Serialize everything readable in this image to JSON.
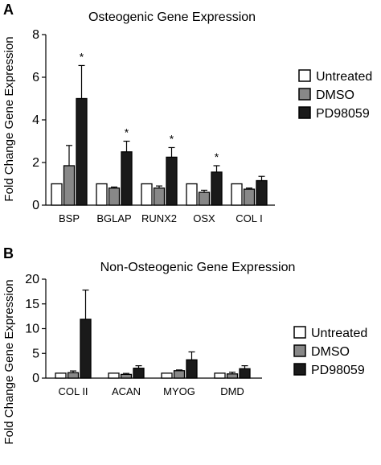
{
  "chart_data": [
    {
      "type": "bar",
      "panel": "A",
      "title": "Osteogenic Gene Expression",
      "ylabel": "Fold Change Gene Expression",
      "xlabel": "",
      "ylim": [
        0,
        8
      ],
      "yticks": [
        "0",
        "2",
        "4",
        "6",
        "8"
      ],
      "categories": [
        "BSP",
        "BGLAP",
        "RUNX2",
        "OSX",
        "COL I"
      ],
      "series": [
        {
          "name": "Untreated",
          "color": "#ffffff",
          "values": [
            1.0,
            1.0,
            1.0,
            1.0,
            1.0
          ],
          "errors": [
            0,
            0,
            0,
            0,
            0
          ]
        },
        {
          "name": "DMSO",
          "color": "#888888",
          "values": [
            1.85,
            0.8,
            0.8,
            0.6,
            0.75
          ],
          "errors": [
            0.95,
            0.05,
            0.1,
            0.1,
            0.05
          ]
        },
        {
          "name": "PD98059",
          "color": "#1a1a1a",
          "values": [
            5.0,
            2.5,
            2.25,
            1.55,
            1.15
          ],
          "errors": [
            1.55,
            0.5,
            0.45,
            0.3,
            0.2
          ]
        }
      ],
      "significance": [
        "*",
        "*",
        "*",
        "*",
        ""
      ],
      "legend_placement": "right"
    },
    {
      "type": "bar",
      "panel": "B",
      "title": "Non-Osteogenic Gene Expression",
      "ylabel": "Fold Change Gene Expression",
      "xlabel": "",
      "ylim": [
        0,
        20
      ],
      "yticks": [
        "0",
        "5",
        "10",
        "15",
        "20"
      ],
      "categories": [
        "COL II",
        "ACAN",
        "MYOG",
        "DMD"
      ],
      "series": [
        {
          "name": "Untreated",
          "color": "#ffffff",
          "values": [
            1.0,
            1.0,
            1.0,
            1.0
          ],
          "errors": [
            0,
            0,
            0,
            0
          ]
        },
        {
          "name": "DMSO",
          "color": "#888888",
          "values": [
            1.1,
            0.75,
            1.5,
            0.85
          ],
          "errors": [
            0.35,
            0.2,
            0.15,
            0.35
          ]
        },
        {
          "name": "PD98059",
          "color": "#1a1a1a",
          "values": [
            11.9,
            2.0,
            3.7,
            1.9
          ],
          "errors": [
            5.9,
            0.5,
            1.6,
            0.6
          ]
        }
      ],
      "significance": [
        "",
        "",
        "",
        ""
      ],
      "legend_placement": "right"
    }
  ]
}
